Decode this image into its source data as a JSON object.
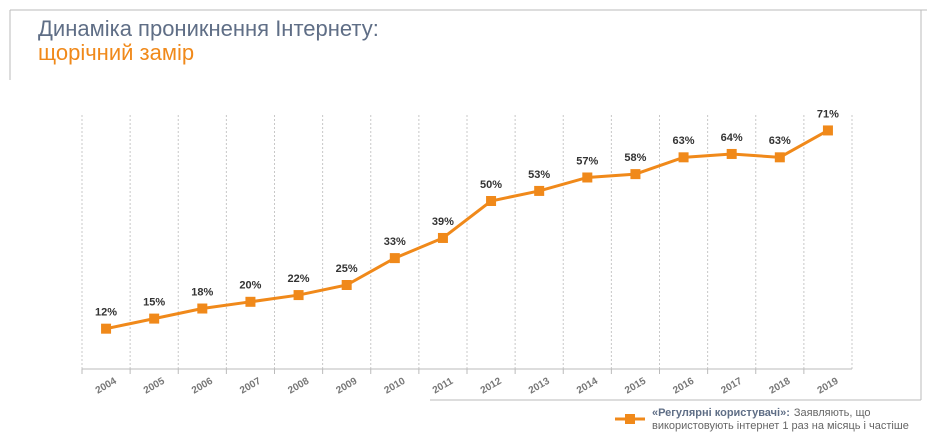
{
  "chart_data": {
    "type": "line",
    "title": "Динаміка проникнення Інтернету:",
    "subtitle": "щорічний замір",
    "categories": [
      "2004",
      "2005",
      "2006",
      "2007",
      "2008",
      "2009",
      "2010",
      "2011",
      "2012",
      "2013",
      "2014",
      "2015",
      "2016",
      "2017",
      "2018",
      "2019"
    ],
    "series": [
      {
        "name": "«Регулярні користувачі»:",
        "color": "#f0891a",
        "values": [
          12,
          15,
          18,
          20,
          22,
          25,
          33,
          39,
          50,
          53,
          57,
          58,
          63,
          64,
          63,
          71
        ],
        "value_labels": [
          "12%",
          "15%",
          "18%",
          "20%",
          "22%",
          "25%",
          "33%",
          "39%",
          "50%",
          "53%",
          "57%",
          "58%",
          "63%",
          "64%",
          "63%",
          "71%"
        ]
      }
    ],
    "legend_note": [
      "Заявляють, що",
      "використовують інтернет 1 раз на місяць і частіше"
    ],
    "ylim": [
      0,
      75
    ],
    "grid": true
  }
}
